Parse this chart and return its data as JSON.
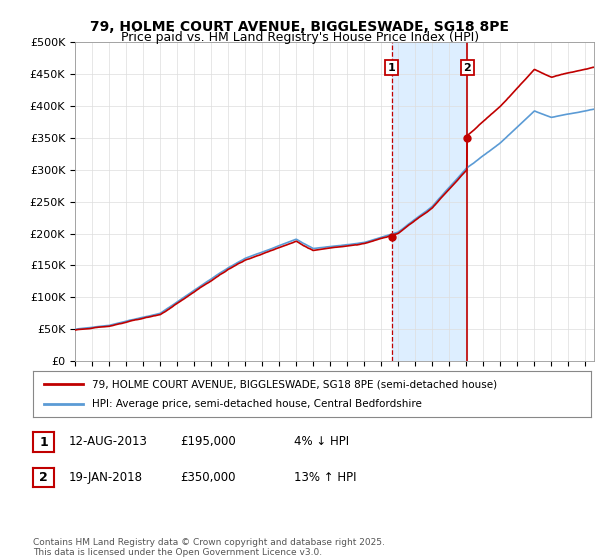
{
  "title": "79, HOLME COURT AVENUE, BIGGLESWADE, SG18 8PE",
  "subtitle": "Price paid vs. HM Land Registry's House Price Index (HPI)",
  "yticks": [
    0,
    50000,
    100000,
    150000,
    200000,
    250000,
    300000,
    350000,
    400000,
    450000,
    500000
  ],
  "ytick_labels": [
    "£0",
    "£50K",
    "£100K",
    "£150K",
    "£200K",
    "£250K",
    "£300K",
    "£350K",
    "£400K",
    "£450K",
    "£500K"
  ],
  "xlim_start": 1995.0,
  "xlim_end": 2025.5,
  "ylim_min": 0,
  "ylim_max": 500000,
  "hpi_color": "#5b9bd5",
  "price_color": "#c00000",
  "sale1_x": 2013.614,
  "sale1_y": 195000,
  "sale2_x": 2018.055,
  "sale2_y": 350000,
  "legend_line1": "79, HOLME COURT AVENUE, BIGGLESWADE, SG18 8PE (semi-detached house)",
  "legend_line2": "HPI: Average price, semi-detached house, Central Bedfordshire",
  "table_row1": [
    "1",
    "12-AUG-2013",
    "£195,000",
    "4% ↓ HPI"
  ],
  "table_row2": [
    "2",
    "19-JAN-2018",
    "£350,000",
    "13% ↑ HPI"
  ],
  "footer": "Contains HM Land Registry data © Crown copyright and database right 2025.\nThis data is licensed under the Open Government Licence v3.0.",
  "shaded_region_color": "#ddeeff",
  "grid_color": "#dddddd"
}
